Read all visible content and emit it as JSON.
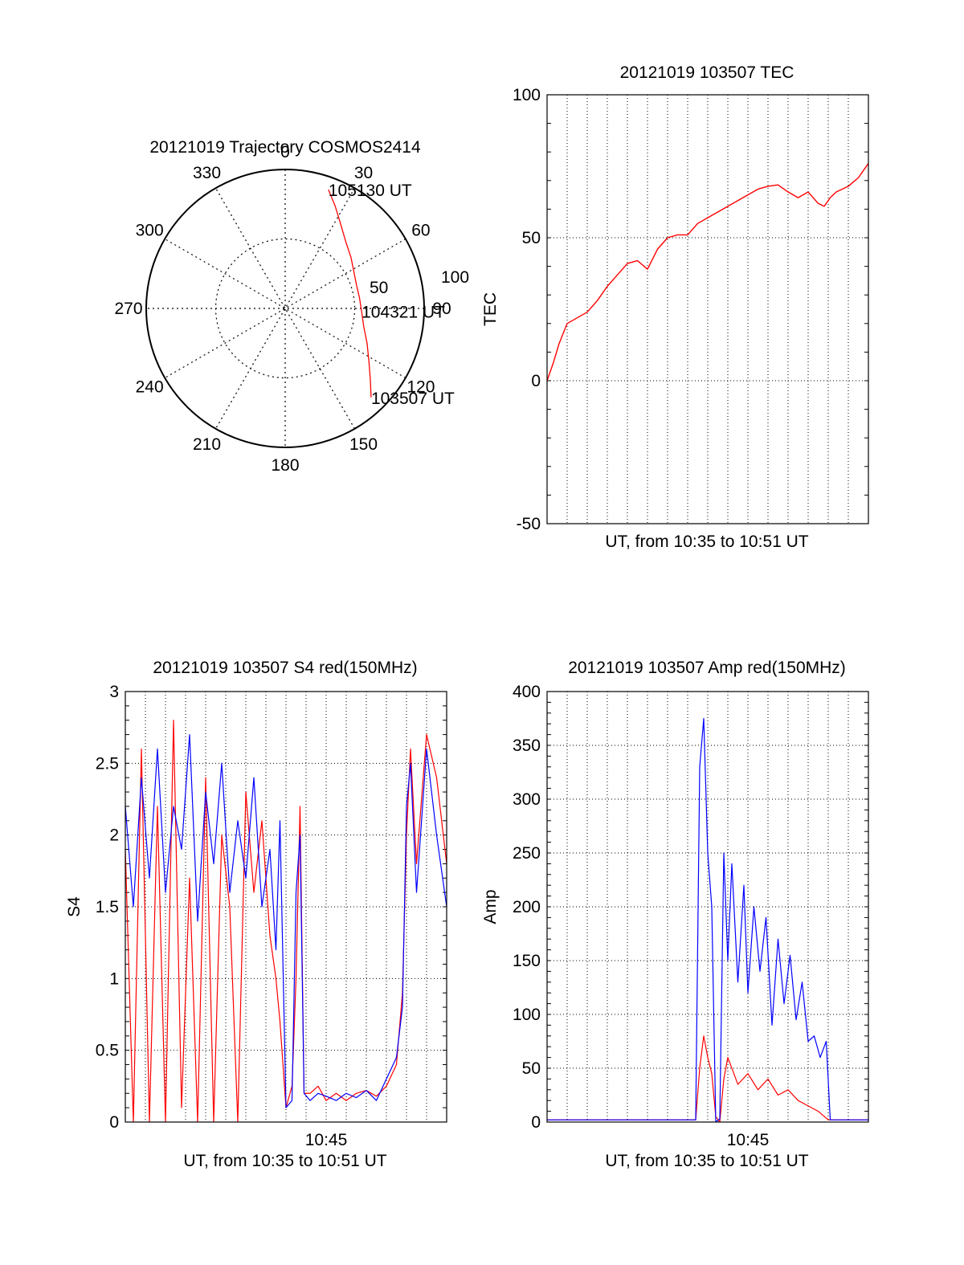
{
  "chart_data": [
    {
      "type": "line",
      "subtype": "polar-trajectory",
      "title": "20121019 Trajectory COSMOS2414",
      "angle_labels": [
        "0",
        "30",
        "60",
        "90",
        "120",
        "150",
        "180",
        "210",
        "240",
        "270",
        "300",
        "330"
      ],
      "radial_labels": [
        "50",
        "100"
      ],
      "radial_range": [
        0,
        100
      ],
      "grid": true,
      "series": [
        {
          "color": "#ff0000",
          "points": [
            {
              "az": 20,
              "r": 91
            },
            {
              "az": 26,
              "r": 82
            },
            {
              "az": 33,
              "r": 73
            },
            {
              "az": 42,
              "r": 65
            },
            {
              "az": 52,
              "r": 60
            },
            {
              "az": 62,
              "r": 56
            },
            {
              "az": 72,
              "r": 54
            },
            {
              "az": 82,
              "r": 54
            },
            {
              "az": 92,
              "r": 55
            },
            {
              "az": 103,
              "r": 58
            },
            {
              "az": 113,
              "r": 64
            },
            {
              "az": 122,
              "r": 71
            },
            {
              "az": 130,
              "r": 80
            },
            {
              "az": 136,
              "r": 89
            }
          ]
        }
      ],
      "annotations": [
        {
          "text": "105130 UT",
          "az": 20,
          "r": 91
        },
        {
          "text": "104321 UT",
          "az": 92,
          "r": 55
        },
        {
          "text": "103507 UT",
          "az": 136,
          "r": 89
        }
      ]
    },
    {
      "type": "line",
      "title": "20121019 103507 TEC",
      "xlabel": "UT, from 10:35 to 10:51 UT",
      "ylabel": "TEC",
      "xlim": [
        0,
        16
      ],
      "ylim": [
        -50,
        100
      ],
      "yticks": [
        "-50",
        "0",
        "50",
        "100"
      ],
      "grid": true,
      "series": [
        {
          "color": "#ff0000",
          "x": [
            0,
            0.3,
            0.6,
            1.0,
            1.5,
            2.0,
            2.5,
            3.0,
            3.5,
            4.0,
            4.5,
            5.0,
            5.5,
            6.0,
            6.5,
            7.0,
            7.5,
            8.0,
            8.5,
            9.0,
            9.5,
            10.0,
            10.5,
            11.0,
            11.5,
            12.0,
            12.5,
            13.0,
            13.5,
            13.8,
            14.1,
            14.4,
            14.7,
            15.0,
            15.5,
            16.0
          ],
          "y": [
            0,
            6,
            13,
            20,
            22,
            24,
            28,
            33,
            37,
            41,
            42,
            39,
            46,
            50,
            51,
            51,
            55,
            57,
            59,
            61,
            63,
            65,
            67,
            68,
            68.5,
            66,
            64,
            66,
            62,
            61,
            64,
            66,
            67,
            68,
            71,
            76
          ]
        }
      ]
    },
    {
      "type": "line",
      "title": "20121019 103507 S4 red(150MHz)",
      "xlabel": "UT, from 10:35 to 10:51 UT",
      "ylabel": "S4",
      "xlim": [
        0,
        16
      ],
      "ylim": [
        0,
        3
      ],
      "yticks": [
        "0",
        "0.5",
        "1",
        "1.5",
        "2",
        "2.5",
        "3"
      ],
      "xtick_label": "10:45",
      "xtick_value": 10,
      "grid": true,
      "series": [
        {
          "color": "#ff0000",
          "x": [
            0,
            0.4,
            0.8,
            1.2,
            1.6,
            2.0,
            2.4,
            2.8,
            3.2,
            3.6,
            4.0,
            4.4,
            4.8,
            5.2,
            5.6,
            6.0,
            6.4,
            6.8,
            7.2,
            7.5,
            7.7,
            8.0,
            8.3,
            8.5,
            8.7,
            8.9,
            9.2,
            9.6,
            10.0,
            10.5,
            11.0,
            11.5,
            12.0,
            12.5,
            13.0,
            13.5,
            13.8,
            14.0,
            14.2,
            14.5,
            15.0,
            15.5,
            16.0
          ],
          "y": [
            1.9,
            0,
            2.6,
            0,
            2.2,
            0,
            2.8,
            0.1,
            1.7,
            0,
            2.4,
            0,
            2.0,
            1.5,
            0,
            2.3,
            1.6,
            2.1,
            1.3,
            1.0,
            0.7,
            0.1,
            0.25,
            1.0,
            2.2,
            0.2,
            0.2,
            0.25,
            0.15,
            0.2,
            0.15,
            0.2,
            0.22,
            0.18,
            0.25,
            0.4,
            0.9,
            2.0,
            2.6,
            1.8,
            2.7,
            2.4,
            1.8
          ]
        },
        {
          "color": "#0000ff",
          "x": [
            0,
            0.4,
            0.8,
            1.2,
            1.6,
            2.0,
            2.4,
            2.8,
            3.2,
            3.6,
            4.0,
            4.4,
            4.8,
            5.2,
            5.6,
            6.0,
            6.4,
            6.8,
            7.2,
            7.5,
            7.7,
            8.0,
            8.3,
            8.5,
            8.7,
            8.9,
            9.2,
            9.6,
            10.0,
            10.5,
            11.0,
            11.5,
            12.0,
            12.5,
            13.0,
            13.5,
            13.8,
            14.0,
            14.2,
            14.5,
            15.0,
            15.5,
            16.0
          ],
          "y": [
            2.2,
            1.5,
            2.4,
            1.7,
            2.6,
            1.6,
            2.2,
            1.9,
            2.7,
            1.4,
            2.3,
            1.8,
            2.5,
            1.6,
            2.1,
            1.7,
            2.4,
            1.5,
            1.9,
            1.2,
            2.1,
            0.1,
            0.15,
            1.6,
            2.0,
            0.2,
            0.15,
            0.2,
            0.18,
            0.15,
            0.2,
            0.17,
            0.22,
            0.15,
            0.3,
            0.45,
            0.8,
            2.2,
            2.5,
            1.6,
            2.6,
            2.0,
            1.5
          ]
        }
      ]
    },
    {
      "type": "line",
      "title": "20121019 103507 Amp red(150MHz)",
      "xlabel": "UT, from 10:35 to 10:51 UT",
      "ylabel": "Amp",
      "xlim": [
        0,
        16
      ],
      "ylim": [
        0,
        400
      ],
      "yticks": [
        "0",
        "50",
        "100",
        "150",
        "200",
        "250",
        "300",
        "350",
        "400"
      ],
      "xtick_label": "10:45",
      "xtick_value": 10,
      "grid": true,
      "series": [
        {
          "color": "#ff0000",
          "x": [
            0,
            7.4,
            7.6,
            7.8,
            8.0,
            8.2,
            8.4,
            8.6,
            8.8,
            9.0,
            9.5,
            10.0,
            10.5,
            11.0,
            11.5,
            12.0,
            12.5,
            13.0,
            13.5,
            14.0,
            16.0
          ],
          "y": [
            2,
            2,
            50,
            80,
            60,
            45,
            5,
            0,
            40,
            60,
            35,
            45,
            30,
            40,
            25,
            30,
            20,
            15,
            10,
            2,
            2
          ]
        },
        {
          "color": "#0000ff",
          "x": [
            0,
            7.4,
            7.6,
            7.8,
            8.0,
            8.2,
            8.4,
            8.6,
            8.8,
            9.0,
            9.2,
            9.5,
            9.8,
            10.0,
            10.3,
            10.6,
            10.9,
            11.2,
            11.5,
            11.8,
            12.1,
            12.4,
            12.7,
            13.0,
            13.3,
            13.6,
            13.9,
            14.1,
            16.0
          ],
          "y": [
            2,
            2,
            330,
            375,
            250,
            200,
            0,
            3,
            250,
            150,
            240,
            130,
            220,
            120,
            200,
            140,
            190,
            90,
            170,
            110,
            155,
            95,
            130,
            75,
            80,
            60,
            75,
            2,
            2
          ]
        }
      ]
    }
  ]
}
